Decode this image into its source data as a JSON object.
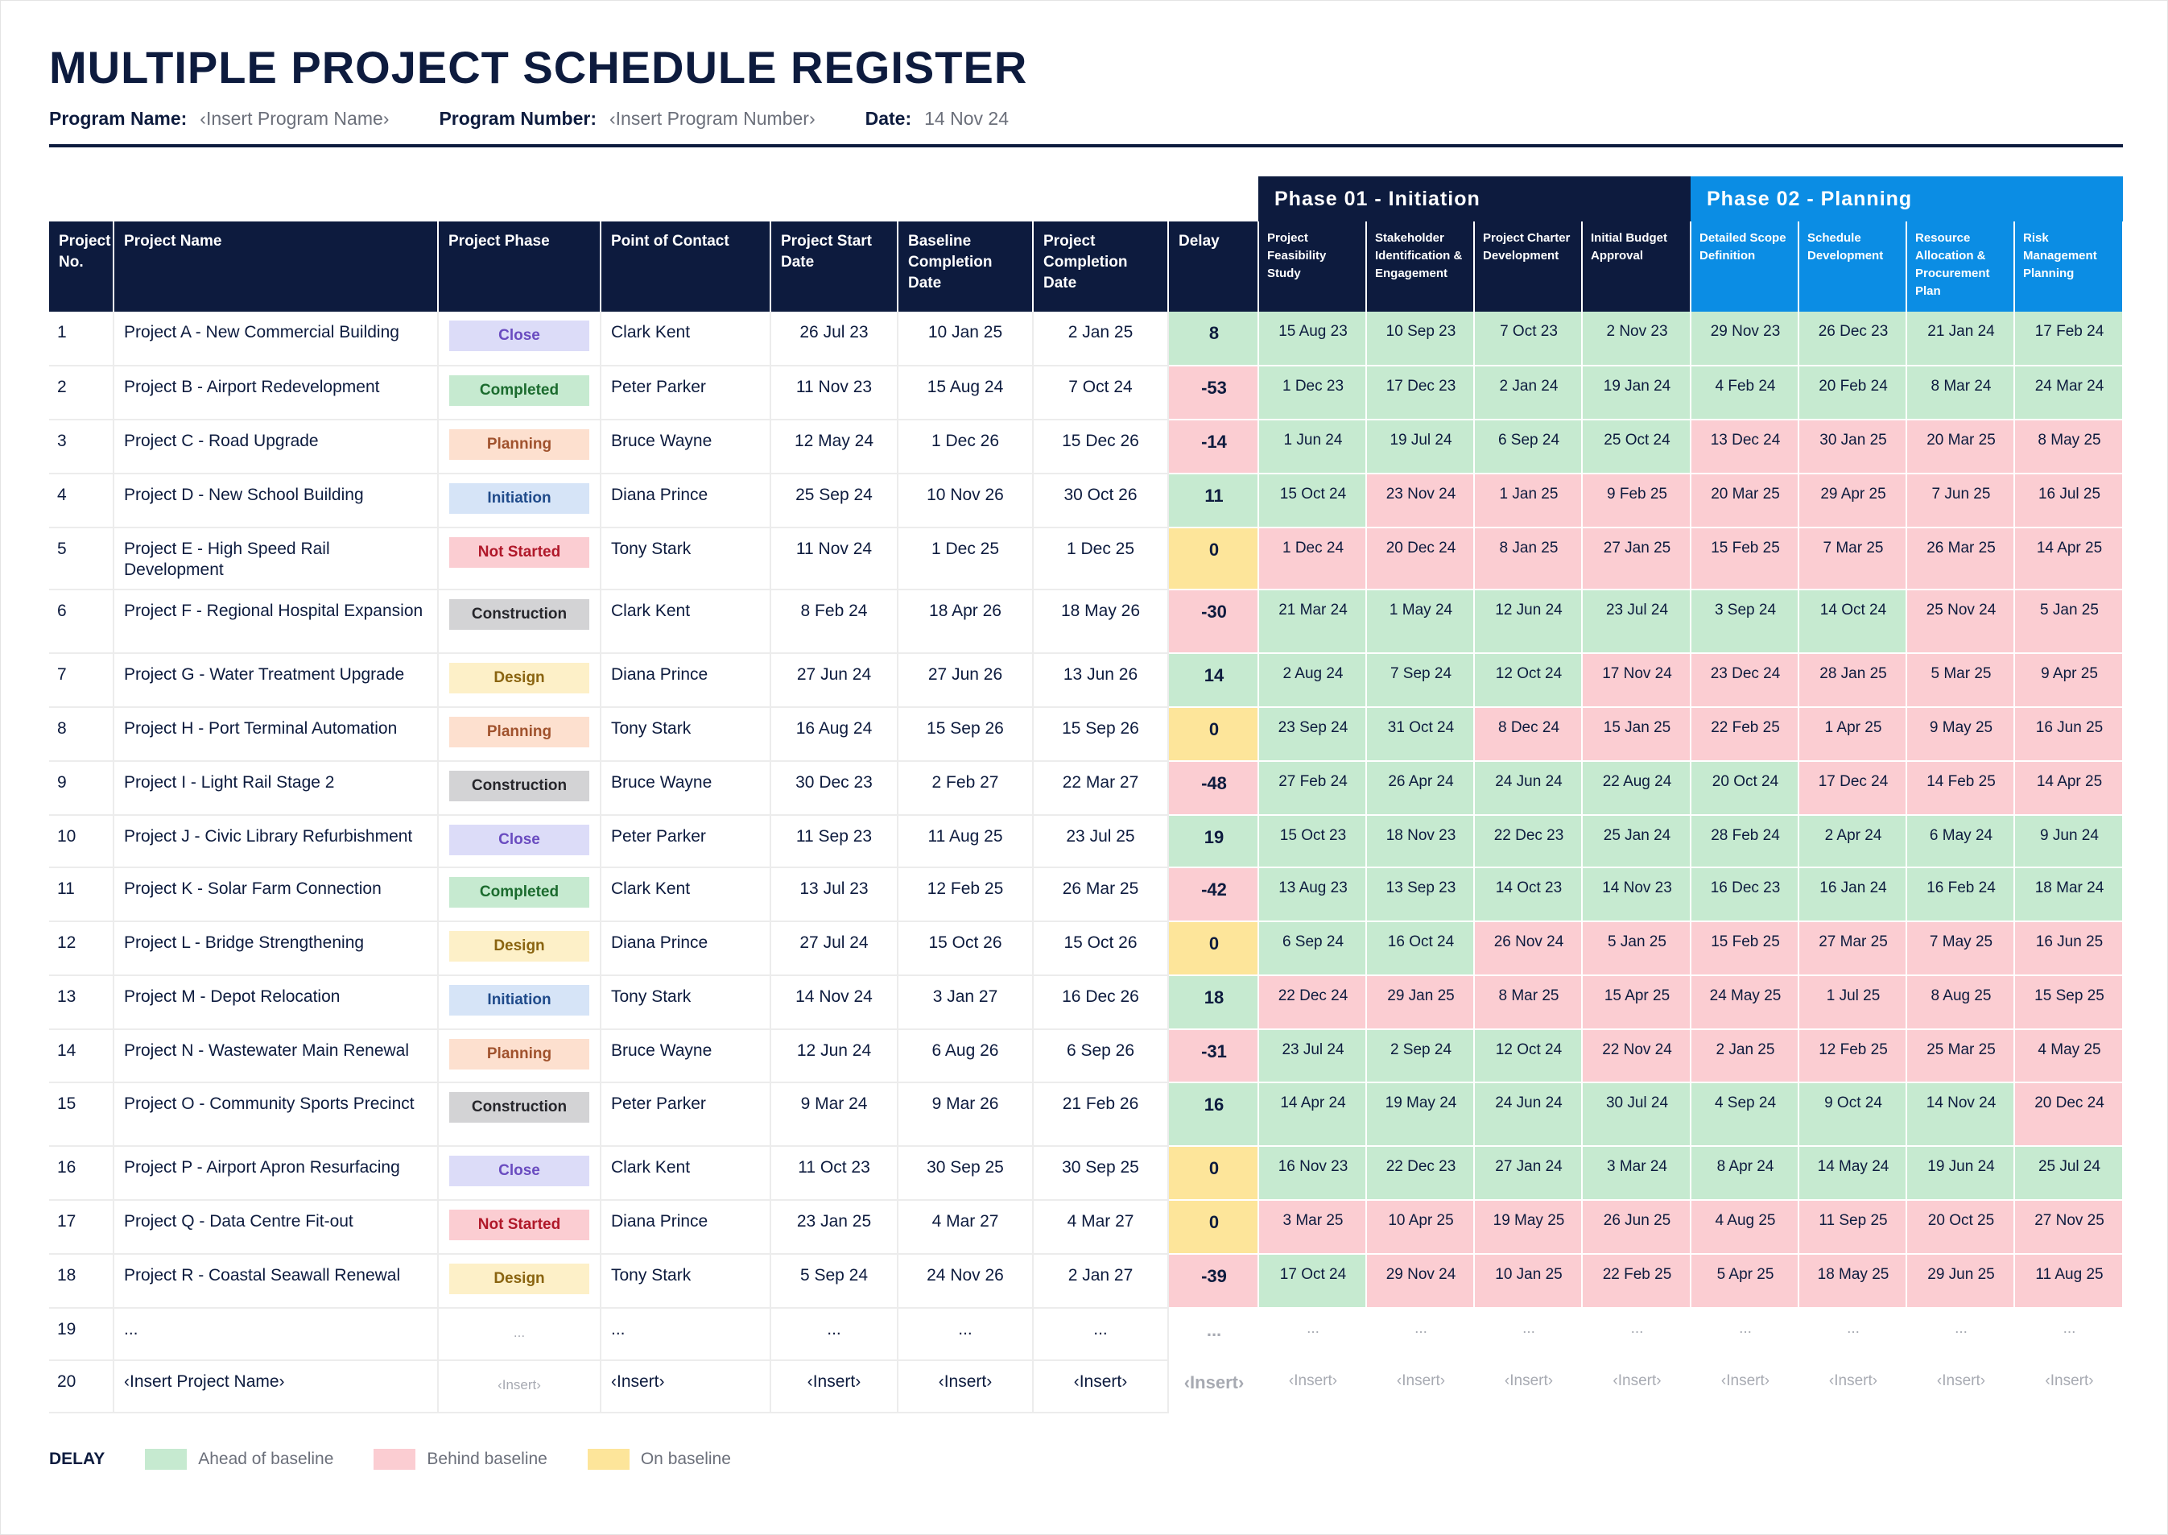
{
  "title": "MULTIPLE PROJECT SCHEDULE REGISTER",
  "meta": {
    "program_name_label": "Program Name:",
    "program_name_value": "‹Insert Program Name›",
    "program_number_label": "Program Number:",
    "program_number_value": "‹Insert Program Number›",
    "date_label": "Date:",
    "date_value": "14 Nov 24"
  },
  "phases": [
    {
      "label": "Phase 01 - Initiation",
      "color": "#0d1b3e"
    },
    {
      "label": "Phase 02 - Planning",
      "color": "#0b8de4"
    }
  ],
  "headers": {
    "project_no": "Project No.",
    "project_name": "Project Name",
    "project_phase": "Project Phase",
    "point_of_contact": "Point of Contact",
    "project_start_date": "Project Start Date",
    "baseline_completion_date": "Baseline Completion Date",
    "project_completion_date": "Project Completion Date",
    "delay": "Delay",
    "milestones": [
      "Project Feasibility Study",
      "Stakeholder Identification & Engagement",
      "Project Charter Development",
      "Initial Budget Approval",
      "Detailed Scope Definition",
      "Schedule Development",
      "Resource Allocation & Procurement Plan",
      "Risk Management Planning"
    ]
  },
  "phase_styles": {
    "Close": {
      "bg": "#dcdcf8",
      "fg": "#6a4cc0"
    },
    "Completed": {
      "bg": "#c6ead0",
      "fg": "#1b6b2e"
    },
    "Planning": {
      "bg": "#fde0cf",
      "fg": "#a0522d"
    },
    "Initiation": {
      "bg": "#d6e4f7",
      "fg": "#1f4a8a"
    },
    "Not Started": {
      "bg": "#fbcdd2",
      "fg": "#b0182a"
    },
    "Construction": {
      "bg": "#d3d3d5",
      "fg": "#26262b"
    },
    "Design": {
      "bg": "#fdf0c8",
      "fg": "#8a6410"
    }
  },
  "status_colors": {
    "ahead": "#c6ead0",
    "behind": "#fbcdd2",
    "on": "#fde59a"
  },
  "rows": [
    {
      "no": "1",
      "name": "Project A - New Commercial Building",
      "phase": "Close",
      "contact": "Clark Kent",
      "start": "26 Jul 23",
      "baseline": "10 Jan 25",
      "completion": "2 Jan 25",
      "delay": "8",
      "delay_status": "ahead",
      "milestones": [
        [
          "15 Aug 23",
          "a"
        ],
        [
          "10 Sep 23",
          "a"
        ],
        [
          "7 Oct 23",
          "a"
        ],
        [
          "2 Nov 23",
          "a"
        ],
        [
          "29 Nov 23",
          "a"
        ],
        [
          "26 Dec 23",
          "a"
        ],
        [
          "21 Jan 24",
          "a"
        ],
        [
          "17 Feb 24",
          "a"
        ]
      ]
    },
    {
      "no": "2",
      "name": "Project B - Airport Redevelopment",
      "phase": "Completed",
      "contact": "Peter Parker",
      "start": "11 Nov 23",
      "baseline": "15 Aug 24",
      "completion": "7 Oct 24",
      "delay": "-53",
      "delay_status": "behind",
      "milestones": [
        [
          "1 Dec 23",
          "a"
        ],
        [
          "17 Dec 23",
          "a"
        ],
        [
          "2 Jan 24",
          "a"
        ],
        [
          "19 Jan 24",
          "a"
        ],
        [
          "4 Feb 24",
          "a"
        ],
        [
          "20 Feb 24",
          "a"
        ],
        [
          "8 Mar 24",
          "a"
        ],
        [
          "24 Mar 24",
          "a"
        ]
      ]
    },
    {
      "no": "3",
      "name": "Project C - Road Upgrade",
      "phase": "Planning",
      "contact": "Bruce Wayne",
      "start": "12 May 24",
      "baseline": "1 Dec 26",
      "completion": "15 Dec 26",
      "delay": "-14",
      "delay_status": "behind",
      "milestones": [
        [
          "1 Jun 24",
          "a"
        ],
        [
          "19 Jul 24",
          "a"
        ],
        [
          "6 Sep 24",
          "a"
        ],
        [
          "25 Oct 24",
          "a"
        ],
        [
          "13 Dec 24",
          "b"
        ],
        [
          "30 Jan 25",
          "b"
        ],
        [
          "20 Mar 25",
          "b"
        ],
        [
          "8 May 25",
          "b"
        ]
      ]
    },
    {
      "no": "4",
      "name": "Project D - New School Building",
      "phase": "Initiation",
      "contact": "Diana Prince",
      "start": "25 Sep 24",
      "baseline": "10 Nov 26",
      "completion": "30 Oct 26",
      "delay": "11",
      "delay_status": "ahead",
      "milestones": [
        [
          "15 Oct 24",
          "a"
        ],
        [
          "23 Nov 24",
          "b"
        ],
        [
          "1 Jan 25",
          "b"
        ],
        [
          "9 Feb 25",
          "b"
        ],
        [
          "20 Mar 25",
          "b"
        ],
        [
          "29 Apr 25",
          "b"
        ],
        [
          "7 Jun 25",
          "b"
        ],
        [
          "16 Jul 25",
          "b"
        ]
      ]
    },
    {
      "no": "5",
      "name": "Project E - High Speed Rail Development",
      "phase": "Not Started",
      "contact": "Tony Stark",
      "start": "11 Nov 24",
      "baseline": "1 Dec 25",
      "completion": "1 Dec 25",
      "delay": "0",
      "delay_status": "on",
      "milestones": [
        [
          "1 Dec 24",
          "b"
        ],
        [
          "20 Dec 24",
          "b"
        ],
        [
          "8 Jan 25",
          "b"
        ],
        [
          "27 Jan 25",
          "b"
        ],
        [
          "15 Feb 25",
          "b"
        ],
        [
          "7 Mar 25",
          "b"
        ],
        [
          "26 Mar 25",
          "b"
        ],
        [
          "14 Apr 25",
          "b"
        ]
      ]
    },
    {
      "no": "6",
      "name": "Project F - Regional Hospital Expansion",
      "phase": "Construction",
      "contact": "Clark Kent",
      "start": "8 Feb 24",
      "baseline": "18 Apr 26",
      "completion": "18 May 26",
      "delay": "-30",
      "delay_status": "behind",
      "milestones": [
        [
          "21 Mar 24",
          "a"
        ],
        [
          "1 May 24",
          "a"
        ],
        [
          "12 Jun 24",
          "a"
        ],
        [
          "23 Jul 24",
          "a"
        ],
        [
          "3 Sep 24",
          "a"
        ],
        [
          "14 Oct 24",
          "a"
        ],
        [
          "25 Nov 24",
          "b"
        ],
        [
          "5 Jan 25",
          "b"
        ]
      ]
    },
    {
      "no": "7",
      "name": "Project G - Water Treatment Upgrade",
      "phase": "Design",
      "contact": "Diana Prince",
      "start": "27 Jun 24",
      "baseline": "27 Jun 26",
      "completion": "13 Jun 26",
      "delay": "14",
      "delay_status": "ahead",
      "milestones": [
        [
          "2 Aug 24",
          "a"
        ],
        [
          "7 Sep 24",
          "a"
        ],
        [
          "12 Oct 24",
          "a"
        ],
        [
          "17 Nov 24",
          "b"
        ],
        [
          "23 Dec 24",
          "b"
        ],
        [
          "28 Jan 25",
          "b"
        ],
        [
          "5 Mar 25",
          "b"
        ],
        [
          "9 Apr 25",
          "b"
        ]
      ]
    },
    {
      "no": "8",
      "name": "Project H - Port Terminal Automation",
      "phase": "Planning",
      "contact": "Tony Stark",
      "start": "16 Aug 24",
      "baseline": "15 Sep 26",
      "completion": "15 Sep 26",
      "delay": "0",
      "delay_status": "on",
      "milestones": [
        [
          "23 Sep 24",
          "a"
        ],
        [
          "31 Oct 24",
          "a"
        ],
        [
          "8 Dec 24",
          "b"
        ],
        [
          "15 Jan 25",
          "b"
        ],
        [
          "22 Feb 25",
          "b"
        ],
        [
          "1 Apr 25",
          "b"
        ],
        [
          "9 May 25",
          "b"
        ],
        [
          "16 Jun 25",
          "b"
        ]
      ]
    },
    {
      "no": "9",
      "name": "Project I - Light Rail Stage 2",
      "phase": "Construction",
      "contact": "Bruce Wayne",
      "start": "30 Dec 23",
      "baseline": "2 Feb 27",
      "completion": "22 Mar 27",
      "delay": "-48",
      "delay_status": "behind",
      "milestones": [
        [
          "27 Feb 24",
          "a"
        ],
        [
          "26 Apr 24",
          "a"
        ],
        [
          "24 Jun 24",
          "a"
        ],
        [
          "22 Aug 24",
          "a"
        ],
        [
          "20 Oct 24",
          "a"
        ],
        [
          "17 Dec 24",
          "b"
        ],
        [
          "14 Feb 25",
          "b"
        ],
        [
          "14 Apr 25",
          "b"
        ]
      ]
    },
    {
      "no": "10",
      "name": "Project J - Civic Library Refurbishment",
      "phase": "Close",
      "contact": "Peter Parker",
      "start": "11 Sep 23",
      "baseline": "11 Aug 25",
      "completion": "23 Jul 25",
      "delay": "19",
      "delay_status": "ahead",
      "milestones": [
        [
          "15 Oct 23",
          "a"
        ],
        [
          "18 Nov 23",
          "a"
        ],
        [
          "22 Dec 23",
          "a"
        ],
        [
          "25 Jan 24",
          "a"
        ],
        [
          "28 Feb 24",
          "a"
        ],
        [
          "2 Apr 24",
          "a"
        ],
        [
          "6 May 24",
          "a"
        ],
        [
          "9 Jun 24",
          "a"
        ]
      ]
    },
    {
      "no": "11",
      "name": "Project K - Solar Farm Connection",
      "phase": "Completed",
      "contact": "Clark Kent",
      "start": "13 Jul 23",
      "baseline": "12 Feb 25",
      "completion": "26 Mar 25",
      "delay": "-42",
      "delay_status": "behind",
      "milestones": [
        [
          "13 Aug 23",
          "a"
        ],
        [
          "13 Sep 23",
          "a"
        ],
        [
          "14 Oct 23",
          "a"
        ],
        [
          "14 Nov 23",
          "a"
        ],
        [
          "16 Dec 23",
          "a"
        ],
        [
          "16 Jan 24",
          "a"
        ],
        [
          "16 Feb 24",
          "a"
        ],
        [
          "18 Mar 24",
          "a"
        ]
      ]
    },
    {
      "no": "12",
      "name": "Project L - Bridge Strengthening",
      "phase": "Design",
      "contact": "Diana Prince",
      "start": "27 Jul 24",
      "baseline": "15 Oct 26",
      "completion": "15 Oct 26",
      "delay": "0",
      "delay_status": "on",
      "milestones": [
        [
          "6 Sep 24",
          "a"
        ],
        [
          "16 Oct 24",
          "a"
        ],
        [
          "26 Nov 24",
          "b"
        ],
        [
          "5 Jan 25",
          "b"
        ],
        [
          "15 Feb 25",
          "b"
        ],
        [
          "27 Mar 25",
          "b"
        ],
        [
          "7 May 25",
          "b"
        ],
        [
          "16 Jun 25",
          "b"
        ]
      ]
    },
    {
      "no": "13",
      "name": "Project M - Depot Relocation",
      "phase": "Initiation",
      "contact": "Tony Stark",
      "start": "14 Nov 24",
      "baseline": "3 Jan 27",
      "completion": "16 Dec 26",
      "delay": "18",
      "delay_status": "ahead",
      "milestones": [
        [
          "22 Dec 24",
          "b"
        ],
        [
          "29 Jan 25",
          "b"
        ],
        [
          "8 Mar 25",
          "b"
        ],
        [
          "15 Apr 25",
          "b"
        ],
        [
          "24 May 25",
          "b"
        ],
        [
          "1 Jul 25",
          "b"
        ],
        [
          "8 Aug 25",
          "b"
        ],
        [
          "15 Sep 25",
          "b"
        ]
      ]
    },
    {
      "no": "14",
      "name": "Project N - Wastewater Main Renewal",
      "phase": "Planning",
      "contact": "Bruce Wayne",
      "start": "12 Jun 24",
      "baseline": "6 Aug 26",
      "completion": "6 Sep 26",
      "delay": "-31",
      "delay_status": "behind",
      "milestones": [
        [
          "23 Jul 24",
          "a"
        ],
        [
          "2 Sep 24",
          "a"
        ],
        [
          "12 Oct 24",
          "a"
        ],
        [
          "22 Nov 24",
          "b"
        ],
        [
          "2 Jan 25",
          "b"
        ],
        [
          "12 Feb 25",
          "b"
        ],
        [
          "25 Mar 25",
          "b"
        ],
        [
          "4 May 25",
          "b"
        ]
      ]
    },
    {
      "no": "15",
      "name": "Project O - Community Sports Precinct",
      "phase": "Construction",
      "contact": "Peter Parker",
      "start": "9 Mar 24",
      "baseline": "9 Mar 26",
      "completion": "21 Feb 26",
      "delay": "16",
      "delay_status": "ahead",
      "milestones": [
        [
          "14 Apr 24",
          "a"
        ],
        [
          "19 May 24",
          "a"
        ],
        [
          "24 Jun 24",
          "a"
        ],
        [
          "30 Jul 24",
          "a"
        ],
        [
          "4 Sep 24",
          "a"
        ],
        [
          "9 Oct 24",
          "a"
        ],
        [
          "14 Nov 24",
          "a"
        ],
        [
          "20 Dec 24",
          "b"
        ]
      ]
    },
    {
      "no": "16",
      "name": "Project P - Airport Apron Resurfacing",
      "phase": "Close",
      "contact": "Clark Kent",
      "start": "11 Oct 23",
      "baseline": "30 Sep 25",
      "completion": "30 Sep 25",
      "delay": "0",
      "delay_status": "on",
      "milestones": [
        [
          "16 Nov 23",
          "a"
        ],
        [
          "22 Dec 23",
          "a"
        ],
        [
          "27 Jan 24",
          "a"
        ],
        [
          "3 Mar 24",
          "a"
        ],
        [
          "8 Apr 24",
          "a"
        ],
        [
          "14 May 24",
          "a"
        ],
        [
          "19 Jun 24",
          "a"
        ],
        [
          "25 Jul 24",
          "a"
        ]
      ]
    },
    {
      "no": "17",
      "name": "Project Q - Data Centre Fit-out",
      "phase": "Not Started",
      "contact": "Diana Prince",
      "start": "23 Jan 25",
      "baseline": "4 Mar 27",
      "completion": "4 Mar 27",
      "delay": "0",
      "delay_status": "on",
      "milestones": [
        [
          "3 Mar 25",
          "b"
        ],
        [
          "10 Apr 25",
          "b"
        ],
        [
          "19 May 25",
          "b"
        ],
        [
          "26 Jun 25",
          "b"
        ],
        [
          "4 Aug 25",
          "b"
        ],
        [
          "11 Sep 25",
          "b"
        ],
        [
          "20 Oct 25",
          "b"
        ],
        [
          "27 Nov 25",
          "b"
        ]
      ]
    },
    {
      "no": "18",
      "name": "Project R - Coastal Seawall Renewal",
      "phase": "Design",
      "contact": "Tony Stark",
      "start": "5 Sep 24",
      "baseline": "24 Nov 26",
      "completion": "2 Jan 27",
      "delay": "-39",
      "delay_status": "behind",
      "milestones": [
        [
          "17 Oct 24",
          "a"
        ],
        [
          "29 Nov 24",
          "b"
        ],
        [
          "10 Jan 25",
          "b"
        ],
        [
          "22 Feb 25",
          "b"
        ],
        [
          "5 Apr 25",
          "b"
        ],
        [
          "18 May 25",
          "b"
        ],
        [
          "29 Jun 25",
          "b"
        ],
        [
          "11 Aug 25",
          "b"
        ]
      ]
    },
    {
      "no": "19",
      "name": "...",
      "phase": "...",
      "contact": "...",
      "start": "...",
      "baseline": "...",
      "completion": "...",
      "delay": "...",
      "delay_status": "none",
      "milestones": [
        [
          "...",
          "n"
        ],
        [
          "...",
          "n"
        ],
        [
          "...",
          "n"
        ],
        [
          "...",
          "n"
        ],
        [
          "...",
          "n"
        ],
        [
          "...",
          "n"
        ],
        [
          "...",
          "n"
        ],
        [
          "...",
          "n"
        ]
      ]
    },
    {
      "no": "20",
      "name": "‹Insert Project Name›",
      "phase": "‹Insert›",
      "contact": "‹Insert›",
      "start": "‹Insert›",
      "baseline": "‹Insert›",
      "completion": "‹Insert›",
      "delay": "‹Insert›",
      "delay_status": "none",
      "milestones": [
        [
          "‹Insert›",
          "n"
        ],
        [
          "‹Insert›",
          "n"
        ],
        [
          "‹Insert›",
          "n"
        ],
        [
          "‹Insert›",
          "n"
        ],
        [
          "‹Insert›",
          "n"
        ],
        [
          "‹Insert›",
          "n"
        ],
        [
          "‹Insert›",
          "n"
        ],
        [
          "‹Insert›",
          "n"
        ]
      ]
    }
  ],
  "legend": {
    "title": "DELAY",
    "items": [
      {
        "label": "Ahead of baseline",
        "color": "#c6ead0"
      },
      {
        "label": "Behind baseline",
        "color": "#fbcdd2"
      },
      {
        "label": "On baseline",
        "color": "#fde59a"
      }
    ]
  }
}
